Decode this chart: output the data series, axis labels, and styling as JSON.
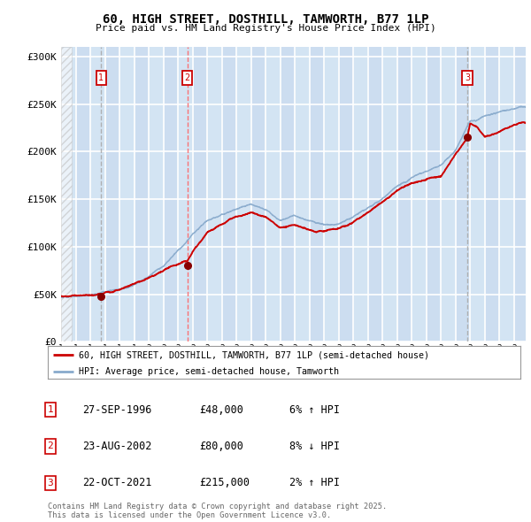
{
  "title": "60, HIGH STREET, DOSTHILL, TAMWORTH, B77 1LP",
  "subtitle": "Price paid vs. HM Land Registry's House Price Index (HPI)",
  "legend_red": "60, HIGH STREET, DOSTHILL, TAMWORTH, B77 1LP (semi-detached house)",
  "legend_blue": "HPI: Average price, semi-detached house, Tamworth",
  "footer": "Contains HM Land Registry data © Crown copyright and database right 2025.\nThis data is licensed under the Open Government Licence v3.0.",
  "transactions": [
    {
      "num": 1,
      "date": "27-SEP-1996",
      "price": 48000,
      "pct": "6%",
      "dir": "↑",
      "year": 1996.75
    },
    {
      "num": 2,
      "date": "23-AUG-2002",
      "price": 80000,
      "pct": "8%",
      "dir": "↓",
      "year": 2002.64
    },
    {
      "num": 3,
      "date": "22-OCT-2021",
      "price": 215000,
      "pct": "2%",
      "dir": "↑",
      "year": 2021.81
    }
  ],
  "ylim": [
    0,
    310000
  ],
  "yticks": [
    0,
    50000,
    100000,
    150000,
    200000,
    250000,
    300000
  ],
  "ytick_labels": [
    "£0",
    "£50K",
    "£100K",
    "£150K",
    "£200K",
    "£250K",
    "£300K"
  ],
  "background_color": "#ffffff",
  "plot_bg_color": "#ccddf0",
  "grid_color": "#ffffff",
  "red_color": "#cc0000",
  "blue_color": "#88aacc",
  "marker_color": "#880000",
  "vline_1_color": "#aaaaaa",
  "vline_2_color": "#ff6666",
  "vline_3_color": "#aaaaaa",
  "box_color": "#cc0000",
  "xstart": 1994.0,
  "xend": 2025.8
}
